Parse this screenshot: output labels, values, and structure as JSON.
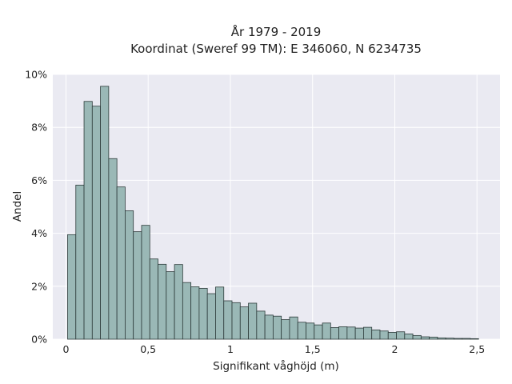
{
  "chart_data": {
    "type": "bar",
    "title": "År 1979 - 2019",
    "subtitle": "Koordinat (Sweref 99 TM): E 346060, N 6234735",
    "xlabel": "Signifikant våghöjd (m)",
    "ylabel": "Andel",
    "xlim": [
      -0.08,
      2.64
    ],
    "ylim": [
      0,
      10
    ],
    "x_ticks": [
      0,
      0.5,
      1,
      1.5,
      2,
      2.5
    ],
    "x_tick_labels": [
      "0",
      "0,5",
      "1",
      "1,5",
      "2",
      "2,5"
    ],
    "y_ticks": [
      0,
      2,
      4,
      6,
      8,
      10
    ],
    "y_tick_labels": [
      "0%",
      "2%",
      "4%",
      "6%",
      "8%",
      "10%"
    ],
    "bin_start": 0.01,
    "bin_width": 0.05,
    "values": [
      3.95,
      5.82,
      8.98,
      8.8,
      9.55,
      6.82,
      5.75,
      4.85,
      4.06,
      4.3,
      3.03,
      2.83,
      2.55,
      2.82,
      2.14,
      1.98,
      1.92,
      1.72,
      1.97,
      1.45,
      1.38,
      1.22,
      1.36,
      1.06,
      0.91,
      0.87,
      0.74,
      0.84,
      0.64,
      0.61,
      0.54,
      0.61,
      0.44,
      0.47,
      0.46,
      0.42,
      0.45,
      0.35,
      0.31,
      0.26,
      0.28,
      0.2,
      0.14,
      0.09,
      0.08,
      0.05,
      0.04,
      0.03,
      0.03,
      0.02
    ],
    "grid": true,
    "colors": {
      "bar_fill": "#9ab8b6",
      "bar_edge": "#2d3b3a",
      "plot_bg": "#eaeaf2",
      "grid": "#ffffff"
    }
  }
}
